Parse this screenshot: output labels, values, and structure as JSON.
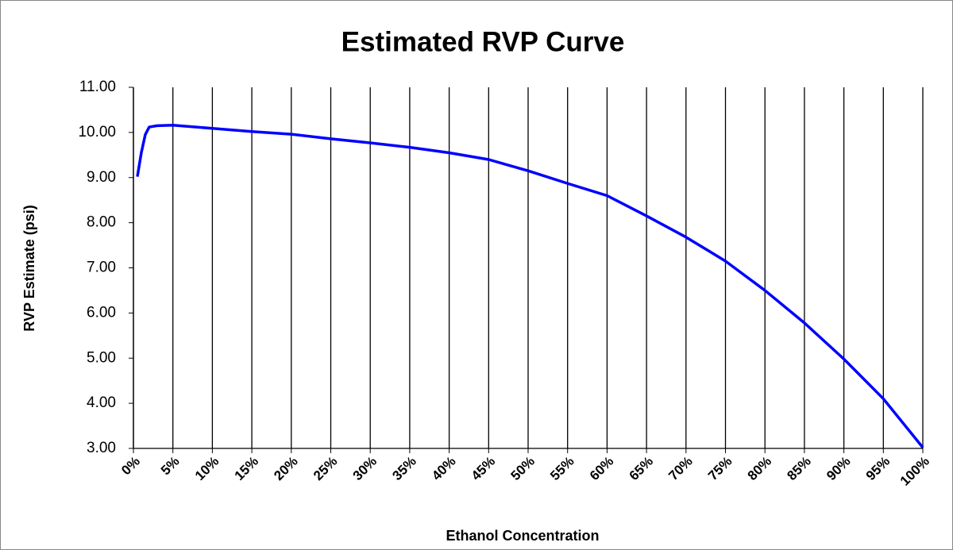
{
  "chart_data": {
    "type": "line",
    "title": "Estimated RVP Curve",
    "x_label": "Ethanol Concentration",
    "y_label": "RVP Estimate (psi)",
    "x": [
      0.5,
      1,
      1.5,
      2,
      3,
      5,
      10,
      15,
      20,
      25,
      30,
      35,
      40,
      45,
      50,
      55,
      60,
      65,
      70,
      75,
      80,
      85,
      90,
      95,
      100
    ],
    "series": [
      {
        "name": "RVP Estimate",
        "color": "#0000ff",
        "values": [
          9.02,
          9.55,
          9.95,
          10.12,
          10.15,
          10.16,
          10.09,
          10.02,
          9.96,
          9.86,
          9.77,
          9.67,
          9.55,
          9.4,
          9.15,
          8.87,
          8.6,
          8.15,
          7.68,
          7.15,
          6.5,
          5.78,
          4.98,
          4.1,
          3.02
        ]
      }
    ],
    "xlim": [
      0,
      100
    ],
    "xticks": [
      {
        "value": 0,
        "label": "0%"
      },
      {
        "value": 5,
        "label": "5%"
      },
      {
        "value": 10,
        "label": "10%"
      },
      {
        "value": 15,
        "label": "15%"
      },
      {
        "value": 20,
        "label": "20%"
      },
      {
        "value": 25,
        "label": "25%"
      },
      {
        "value": 30,
        "label": "30%"
      },
      {
        "value": 35,
        "label": "35%"
      },
      {
        "value": 40,
        "label": "40%"
      },
      {
        "value": 45,
        "label": "45%"
      },
      {
        "value": 50,
        "label": "50%"
      },
      {
        "value": 55,
        "label": "55%"
      },
      {
        "value": 60,
        "label": "60%"
      },
      {
        "value": 65,
        "label": "65%"
      },
      {
        "value": 70,
        "label": "70%"
      },
      {
        "value": 75,
        "label": "75%"
      },
      {
        "value": 80,
        "label": "80%"
      },
      {
        "value": 85,
        "label": "85%"
      },
      {
        "value": 90,
        "label": "90%"
      },
      {
        "value": 95,
        "label": "95%"
      },
      {
        "value": 100,
        "label": "100%"
      }
    ],
    "ylim": [
      3,
      11
    ],
    "yticks": [
      {
        "value": 3,
        "label": "3.00"
      },
      {
        "value": 4,
        "label": "4.00"
      },
      {
        "value": 5,
        "label": "5.00"
      },
      {
        "value": 6,
        "label": "6.00"
      },
      {
        "value": 7,
        "label": "7.00"
      },
      {
        "value": 8,
        "label": "8.00"
      },
      {
        "value": 9,
        "label": "9.00"
      },
      {
        "value": 10,
        "label": "10.00"
      },
      {
        "value": 11,
        "label": "11.00"
      }
    ],
    "grid": "x"
  }
}
